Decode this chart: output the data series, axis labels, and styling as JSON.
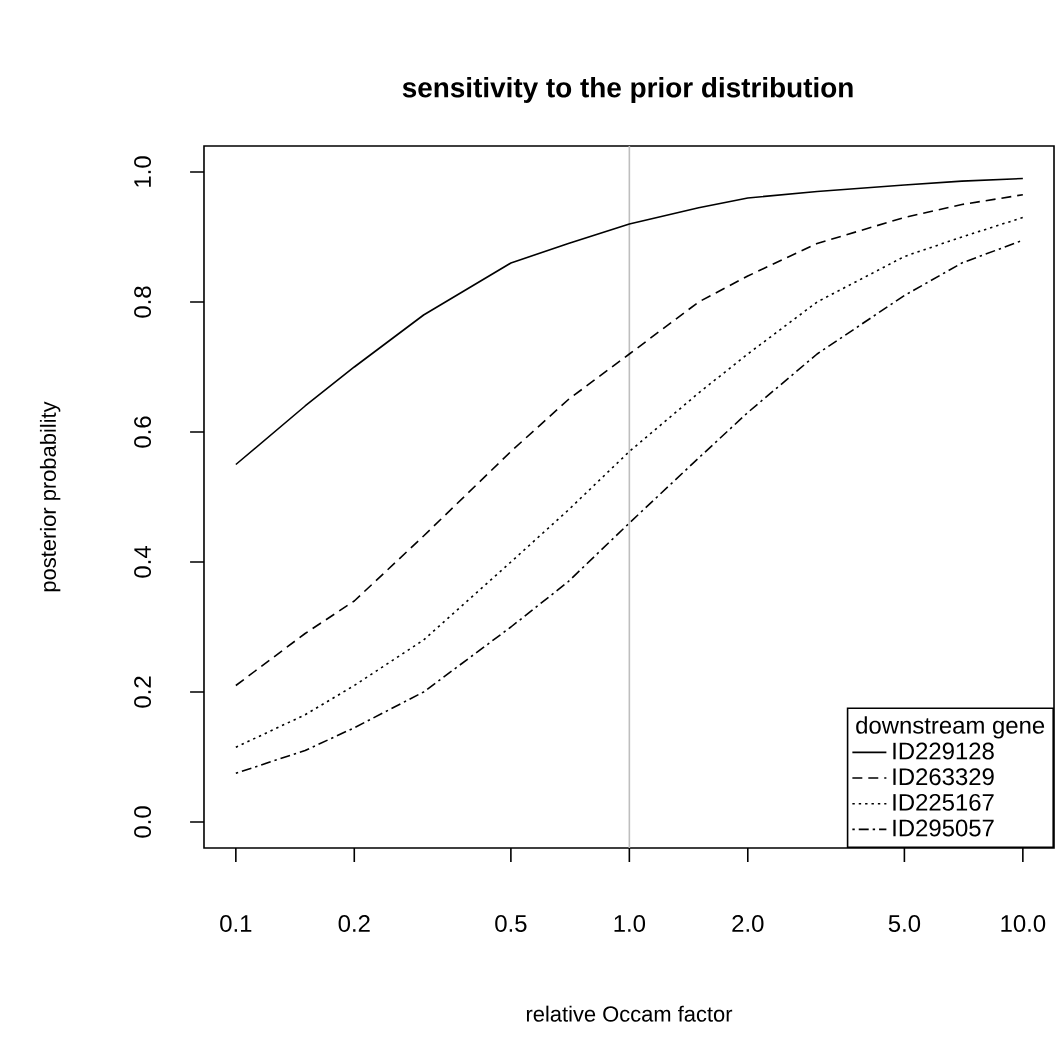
{
  "chart_data": {
    "type": "line",
    "title": "sensitivity to the prior distribution",
    "xlabel": "relative Occam factor",
    "ylabel": "posterior probability",
    "legend_title": "downstream gene",
    "legend": "bottom right",
    "log": "x",
    "xlim": [
      0.083,
      12.0
    ],
    "ylim": [
      -0.04,
      1.04
    ],
    "xticks": [
      0.1,
      0.2,
      0.5,
      {
        "value": 1,
        "label": "1.0"
      },
      {
        "value": 2,
        "label": "2.0"
      },
      {
        "value": 5,
        "label": "5.0"
      },
      {
        "value": 10,
        "label": "10.0"
      }
    ],
    "yticks": [
      {
        "value": 0,
        "label": "0.0"
      },
      0.2,
      0.4,
      0.6,
      0.8,
      {
        "value": 1,
        "label": "1.0"
      }
    ],
    "x": [
      0.1,
      0.15,
      0.2,
      0.3,
      0.5,
      0.7,
      1,
      1.5,
      2,
      3,
      5,
      7,
      10
    ],
    "ref_lines": [
      {
        "axis": "x",
        "value": 1,
        "color": "#bebebe"
      }
    ],
    "series": [
      {
        "name": "ID229128",
        "color": "#000000",
        "line_style": "solid",
        "values": [
          0.55,
          0.64,
          0.7,
          0.78,
          0.86,
          0.89,
          0.92,
          0.945,
          0.96,
          0.97,
          0.98,
          0.986,
          0.99
        ]
      },
      {
        "name": "ID263329",
        "color": "#000000",
        "line_style": "dashed",
        "values": [
          0.21,
          0.29,
          0.34,
          0.44,
          0.57,
          0.65,
          0.72,
          0.8,
          0.84,
          0.89,
          0.93,
          0.95,
          0.965
        ]
      },
      {
        "name": "ID225167",
        "color": "#000000",
        "line_style": "dotted",
        "values": [
          0.115,
          0.165,
          0.21,
          0.28,
          0.4,
          0.48,
          0.57,
          0.66,
          0.72,
          0.8,
          0.87,
          0.9,
          0.93
        ]
      },
      {
        "name": "ID295057",
        "color": "#000000",
        "line_style": "dashdot",
        "values": [
          0.075,
          0.11,
          0.145,
          0.2,
          0.3,
          0.37,
          0.46,
          0.56,
          0.63,
          0.72,
          0.81,
          0.86,
          0.895
        ]
      }
    ]
  }
}
